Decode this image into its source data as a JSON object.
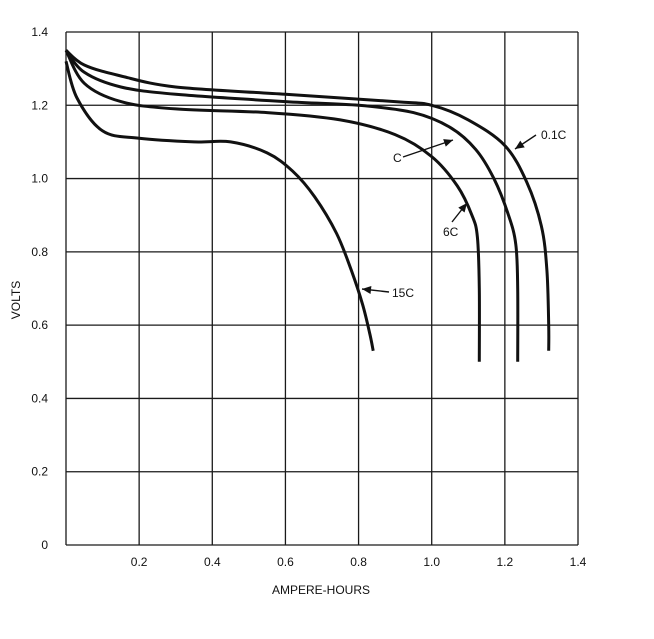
{
  "chart_data": {
    "type": "line",
    "title": "",
    "xlabel": "AMPERE-HOURS",
    "ylabel": "VOLTS",
    "xlim": [
      0,
      1.4
    ],
    "ylim": [
      0,
      1.4
    ],
    "grid": true,
    "x_ticks": [
      0.2,
      0.4,
      0.6,
      0.8,
      1.0,
      1.2,
      1.4
    ],
    "x_tick_labels": [
      "0.2",
      "0.4",
      "0.6",
      "0.8",
      "1.0",
      "1.2",
      "1.4"
    ],
    "y_ticks": [
      0,
      0.2,
      0.4,
      0.6,
      0.8,
      1.0,
      1.2,
      1.4
    ],
    "y_tick_labels": [
      "0",
      "0.2",
      "0.4",
      "0.6",
      "0.8",
      "1.0",
      "1.2",
      "1.4"
    ],
    "series": [
      {
        "name": "0.1C",
        "points": [
          [
            0,
            1.35
          ],
          [
            0.05,
            1.31
          ],
          [
            0.15,
            1.28
          ],
          [
            0.3,
            1.25
          ],
          [
            0.6,
            1.23
          ],
          [
            0.9,
            1.21
          ],
          [
            1.0,
            1.2
          ],
          [
            1.1,
            1.16
          ],
          [
            1.2,
            1.09
          ],
          [
            1.26,
            0.99
          ],
          [
            1.3,
            0.87
          ],
          [
            1.315,
            0.75
          ],
          [
            1.32,
            0.6
          ],
          [
            1.32,
            0.53
          ]
        ]
      },
      {
        "name": "C",
        "points": [
          [
            0,
            1.35
          ],
          [
            0.05,
            1.29
          ],
          [
            0.15,
            1.25
          ],
          [
            0.3,
            1.23
          ],
          [
            0.6,
            1.21
          ],
          [
            0.8,
            1.2
          ],
          [
            0.95,
            1.18
          ],
          [
            1.05,
            1.14
          ],
          [
            1.12,
            1.08
          ],
          [
            1.17,
            1.0
          ],
          [
            1.21,
            0.9
          ],
          [
            1.23,
            0.82
          ],
          [
            1.235,
            0.7
          ],
          [
            1.235,
            0.5
          ]
        ]
      },
      {
        "name": "6C",
        "points": [
          [
            0,
            1.35
          ],
          [
            0.05,
            1.26
          ],
          [
            0.15,
            1.21
          ],
          [
            0.3,
            1.19
          ],
          [
            0.55,
            1.18
          ],
          [
            0.75,
            1.16
          ],
          [
            0.9,
            1.12
          ],
          [
            1.0,
            1.06
          ],
          [
            1.07,
            0.98
          ],
          [
            1.11,
            0.9
          ],
          [
            1.125,
            0.84
          ],
          [
            1.13,
            0.7
          ],
          [
            1.13,
            0.5
          ]
        ]
      },
      {
        "name": "15C",
        "points": [
          [
            0,
            1.32
          ],
          [
            0.03,
            1.22
          ],
          [
            0.1,
            1.13
          ],
          [
            0.2,
            1.11
          ],
          [
            0.35,
            1.1
          ],
          [
            0.45,
            1.1
          ],
          [
            0.55,
            1.07
          ],
          [
            0.62,
            1.02
          ],
          [
            0.68,
            0.95
          ],
          [
            0.74,
            0.85
          ],
          [
            0.78,
            0.75
          ],
          [
            0.81,
            0.66
          ],
          [
            0.83,
            0.58
          ],
          [
            0.84,
            0.53
          ]
        ]
      }
    ],
    "annotations": [
      {
        "text": "0.1C",
        "series": "0.1C"
      },
      {
        "text": "C",
        "series": "C"
      },
      {
        "text": "6C",
        "series": "6C"
      },
      {
        "text": "15C",
        "series": "15C"
      }
    ]
  }
}
